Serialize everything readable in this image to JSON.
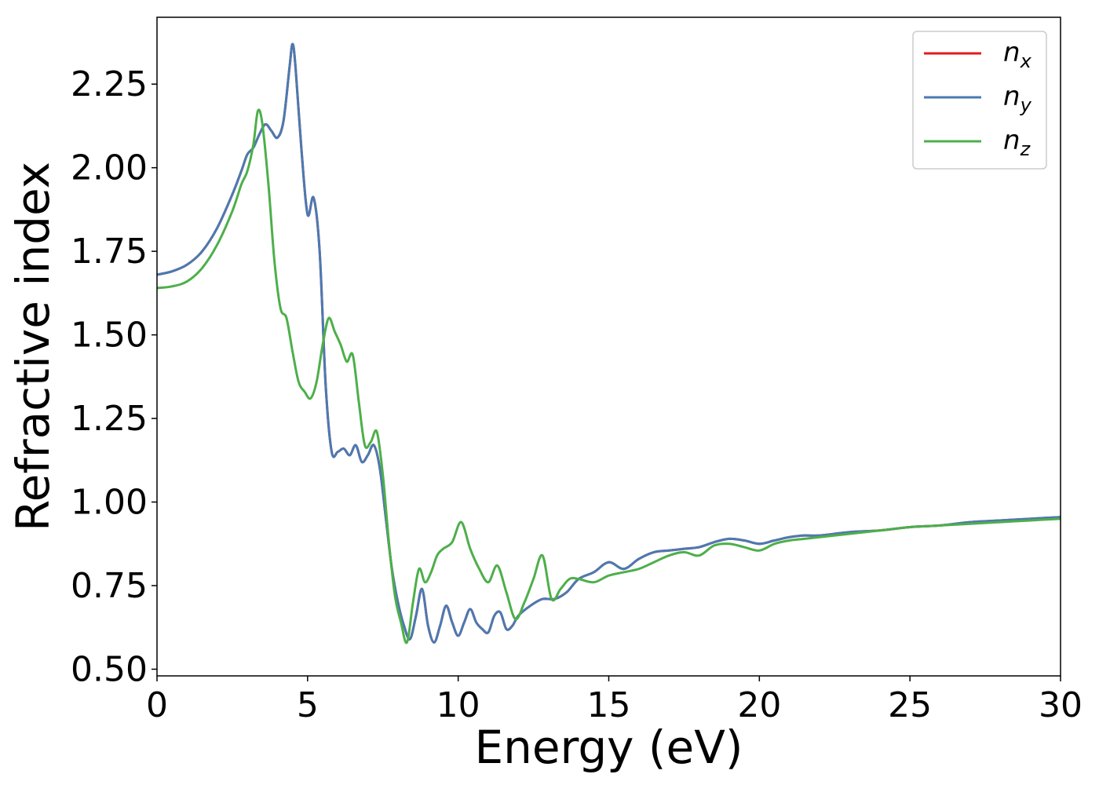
{
  "chart_data": {
    "type": "line",
    "xlabel": "Energy (eV)",
    "ylabel": "Refractive index",
    "xlim": [
      0,
      30
    ],
    "ylim": [
      0.48,
      2.45
    ],
    "xticks": [
      0,
      5,
      10,
      15,
      20,
      25,
      30
    ],
    "xtick_labels": [
      "0",
      "5",
      "10",
      "15",
      "20",
      "25",
      "30"
    ],
    "yticks": [
      0.5,
      0.75,
      1.0,
      1.25,
      1.5,
      1.75,
      2.0,
      2.25
    ],
    "ytick_labels": [
      "0.50",
      "0.75",
      "1.00",
      "1.25",
      "1.50",
      "1.75",
      "2.00",
      "2.25"
    ],
    "grid": false,
    "legend_position": "top-right",
    "series": [
      {
        "name": "n",
        "subscript": "x",
        "color": "#e41a1c",
        "x": [
          0,
          0.5,
          1.0,
          1.5,
          2.0,
          2.5,
          2.8,
          3.0,
          3.2,
          3.4,
          3.6,
          3.8,
          4.0,
          4.2,
          4.4,
          4.5,
          4.6,
          4.8,
          5.0,
          5.2,
          5.4,
          5.6,
          5.8,
          6.0,
          6.2,
          6.4,
          6.6,
          6.8,
          7.0,
          7.2,
          7.4,
          7.6,
          7.8,
          8.0,
          8.2,
          8.4,
          8.6,
          8.8,
          9.0,
          9.2,
          9.4,
          9.6,
          9.8,
          10.0,
          10.2,
          10.4,
          10.6,
          10.8,
          11.0,
          11.2,
          11.4,
          11.6,
          11.8,
          12.0,
          12.4,
          12.8,
          13.2,
          13.6,
          14.0,
          14.5,
          15.0,
          15.5,
          16.0,
          16.5,
          17.0,
          17.5,
          18.0,
          18.5,
          19.0,
          19.5,
          20.0,
          20.5,
          21.0,
          21.5,
          22.0,
          23.0,
          24.0,
          25.0,
          26.0,
          27.0,
          28.0,
          29.0,
          30.0
        ],
        "values": [
          1.68,
          1.69,
          1.71,
          1.75,
          1.82,
          1.92,
          1.99,
          2.04,
          2.06,
          2.1,
          2.13,
          2.11,
          2.09,
          2.14,
          2.3,
          2.37,
          2.3,
          2.05,
          1.86,
          1.91,
          1.75,
          1.35,
          1.15,
          1.15,
          1.16,
          1.14,
          1.17,
          1.12,
          1.14,
          1.17,
          1.1,
          0.95,
          0.8,
          0.7,
          0.63,
          0.59,
          0.66,
          0.74,
          0.63,
          0.58,
          0.63,
          0.69,
          0.64,
          0.6,
          0.64,
          0.68,
          0.64,
          0.62,
          0.61,
          0.66,
          0.67,
          0.62,
          0.63,
          0.66,
          0.69,
          0.71,
          0.71,
          0.73,
          0.77,
          0.79,
          0.82,
          0.8,
          0.83,
          0.85,
          0.855,
          0.86,
          0.865,
          0.88,
          0.89,
          0.885,
          0.875,
          0.885,
          0.895,
          0.9,
          0.9,
          0.91,
          0.915,
          0.925,
          0.93,
          0.94,
          0.945,
          0.95,
          0.955
        ]
      },
      {
        "name": "n",
        "subscript": "y",
        "color": "#4a7ab2",
        "x": [
          0,
          0.5,
          1.0,
          1.5,
          2.0,
          2.5,
          2.8,
          3.0,
          3.2,
          3.4,
          3.6,
          3.8,
          4.0,
          4.2,
          4.4,
          4.5,
          4.6,
          4.8,
          5.0,
          5.2,
          5.4,
          5.6,
          5.8,
          6.0,
          6.2,
          6.4,
          6.6,
          6.8,
          7.0,
          7.2,
          7.4,
          7.6,
          7.8,
          8.0,
          8.2,
          8.4,
          8.6,
          8.8,
          9.0,
          9.2,
          9.4,
          9.6,
          9.8,
          10.0,
          10.2,
          10.4,
          10.6,
          10.8,
          11.0,
          11.2,
          11.4,
          11.6,
          11.8,
          12.0,
          12.4,
          12.8,
          13.2,
          13.6,
          14.0,
          14.5,
          15.0,
          15.5,
          16.0,
          16.5,
          17.0,
          17.5,
          18.0,
          18.5,
          19.0,
          19.5,
          20.0,
          20.5,
          21.0,
          21.5,
          22.0,
          23.0,
          24.0,
          25.0,
          26.0,
          27.0,
          28.0,
          29.0,
          30.0
        ],
        "values": [
          1.68,
          1.69,
          1.71,
          1.75,
          1.82,
          1.92,
          1.99,
          2.04,
          2.06,
          2.1,
          2.13,
          2.11,
          2.09,
          2.14,
          2.3,
          2.37,
          2.3,
          2.05,
          1.86,
          1.91,
          1.75,
          1.35,
          1.15,
          1.15,
          1.16,
          1.14,
          1.17,
          1.12,
          1.14,
          1.17,
          1.1,
          0.95,
          0.8,
          0.7,
          0.63,
          0.59,
          0.66,
          0.74,
          0.63,
          0.58,
          0.63,
          0.69,
          0.64,
          0.6,
          0.64,
          0.68,
          0.64,
          0.62,
          0.61,
          0.66,
          0.67,
          0.62,
          0.63,
          0.66,
          0.69,
          0.71,
          0.71,
          0.73,
          0.77,
          0.79,
          0.82,
          0.8,
          0.83,
          0.85,
          0.855,
          0.86,
          0.865,
          0.88,
          0.89,
          0.885,
          0.875,
          0.885,
          0.895,
          0.9,
          0.9,
          0.91,
          0.915,
          0.925,
          0.93,
          0.94,
          0.945,
          0.95,
          0.955
        ]
      },
      {
        "name": "n",
        "subscript": "z",
        "color": "#4daf4a",
        "x": [
          0,
          0.5,
          1.0,
          1.5,
          2.0,
          2.5,
          2.8,
          3.0,
          3.2,
          3.35,
          3.5,
          3.7,
          3.9,
          4.1,
          4.3,
          4.5,
          4.7,
          4.9,
          5.1,
          5.3,
          5.5,
          5.7,
          5.9,
          6.1,
          6.3,
          6.5,
          6.7,
          6.9,
          7.1,
          7.3,
          7.5,
          7.7,
          7.9,
          8.1,
          8.3,
          8.5,
          8.7,
          8.9,
          9.1,
          9.3,
          9.5,
          9.8,
          10.1,
          10.4,
          10.7,
          11.0,
          11.3,
          11.6,
          11.9,
          12.2,
          12.5,
          12.8,
          13.1,
          13.4,
          13.7,
          14.0,
          14.5,
          15.0,
          15.5,
          16.0,
          16.5,
          17.0,
          17.5,
          18.0,
          18.5,
          19.0,
          19.5,
          20.0,
          20.5,
          21.0,
          21.5,
          22.0,
          23.0,
          24.0,
          25.0,
          26.0,
          27.0,
          28.0,
          29.0,
          30.0
        ],
        "values": [
          1.64,
          1.645,
          1.66,
          1.7,
          1.77,
          1.87,
          1.95,
          1.99,
          2.07,
          2.17,
          2.13,
          1.95,
          1.72,
          1.58,
          1.55,
          1.45,
          1.36,
          1.33,
          1.31,
          1.36,
          1.47,
          1.55,
          1.51,
          1.47,
          1.42,
          1.44,
          1.3,
          1.17,
          1.18,
          1.21,
          1.08,
          0.88,
          0.72,
          0.64,
          0.58,
          0.7,
          0.8,
          0.76,
          0.79,
          0.84,
          0.86,
          0.88,
          0.94,
          0.86,
          0.8,
          0.76,
          0.81,
          0.73,
          0.65,
          0.7,
          0.77,
          0.84,
          0.71,
          0.74,
          0.77,
          0.77,
          0.76,
          0.78,
          0.79,
          0.8,
          0.82,
          0.84,
          0.85,
          0.84,
          0.87,
          0.875,
          0.865,
          0.855,
          0.875,
          0.885,
          0.89,
          0.895,
          0.905,
          0.915,
          0.925,
          0.93,
          0.935,
          0.94,
          0.945,
          0.95
        ]
      }
    ]
  }
}
